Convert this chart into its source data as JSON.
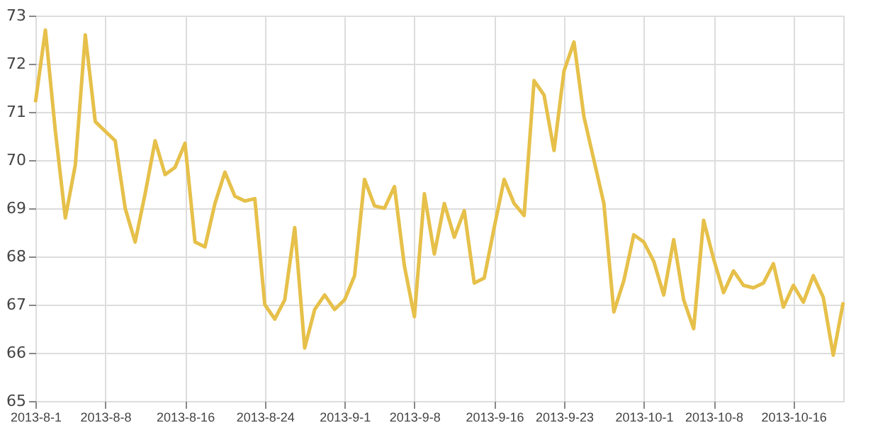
{
  "chart_data": {
    "type": "line",
    "x": [
      "2013-08-01",
      "2013-08-02",
      "2013-08-03",
      "2013-08-04",
      "2013-08-05",
      "2013-08-06",
      "2013-08-07",
      "2013-08-08",
      "2013-08-09",
      "2013-08-10",
      "2013-08-11",
      "2013-08-12",
      "2013-08-13",
      "2013-08-14",
      "2013-08-15",
      "2013-08-16",
      "2013-08-17",
      "2013-08-18",
      "2013-08-19",
      "2013-08-20",
      "2013-08-21",
      "2013-08-22",
      "2013-08-23",
      "2013-08-24",
      "2013-08-25",
      "2013-08-26",
      "2013-08-27",
      "2013-08-28",
      "2013-08-29",
      "2013-08-30",
      "2013-08-31",
      "2013-09-01",
      "2013-09-02",
      "2013-09-03",
      "2013-09-04",
      "2013-09-05",
      "2013-09-06",
      "2013-09-07",
      "2013-09-08",
      "2013-09-09",
      "2013-09-10",
      "2013-09-11",
      "2013-09-12",
      "2013-09-13",
      "2013-09-14",
      "2013-09-15",
      "2013-09-16",
      "2013-09-17",
      "2013-09-18",
      "2013-09-19",
      "2013-09-20",
      "2013-09-21",
      "2013-09-22",
      "2013-09-23",
      "2013-09-24",
      "2013-09-25",
      "2013-09-26",
      "2013-09-27",
      "2013-09-28",
      "2013-09-29",
      "2013-09-30",
      "2013-10-01",
      "2013-10-02",
      "2013-10-03",
      "2013-10-04",
      "2013-10-05",
      "2013-10-06",
      "2013-10-07",
      "2013-10-08",
      "2013-10-09",
      "2013-10-10",
      "2013-10-11",
      "2013-10-12",
      "2013-10-13",
      "2013-10-14",
      "2013-10-15",
      "2013-10-16",
      "2013-10-17",
      "2013-10-18",
      "2013-10-19",
      "2013-10-20",
      "2013-10-21"
    ],
    "series": [
      {
        "color": "#e6c04a",
        "values": [
          71.2,
          72.7,
          70.6,
          68.8,
          69.9,
          72.6,
          70.8,
          70.6,
          70.4,
          69.0,
          68.3,
          69.3,
          70.4,
          69.7,
          69.85,
          70.35,
          68.3,
          68.2,
          69.1,
          69.75,
          69.25,
          69.15,
          69.2,
          67.0,
          66.7,
          67.1,
          68.6,
          66.1,
          66.9,
          67.2,
          66.9,
          67.1,
          67.6,
          69.6,
          69.05,
          69.0,
          69.45,
          67.8,
          66.75,
          69.3,
          68.05,
          69.1,
          68.4,
          68.95,
          67.45,
          67.55,
          68.6,
          69.6,
          69.1,
          68.85,
          71.65,
          71.35,
          70.2,
          71.85,
          72.45,
          70.9,
          70.0,
          69.1,
          66.85,
          67.5,
          68.45,
          68.3,
          67.9,
          67.2,
          68.35,
          67.1,
          66.5,
          68.75,
          67.95,
          67.25,
          67.7,
          67.4,
          67.35,
          67.45,
          67.85,
          66.95,
          67.4,
          67.05,
          67.6,
          67.15,
          65.95,
          67.05
        ]
      }
    ],
    "xlim": [
      "2013-08-01",
      "2013-10-21"
    ],
    "xticks": [
      {
        "value": "2013-08-01",
        "label": "2013-8-1"
      },
      {
        "value": "2013-08-08",
        "label": "2013-8-8"
      },
      {
        "value": "2013-08-16",
        "label": "2013-8-16"
      },
      {
        "value": "2013-08-24",
        "label": "2013-8-24"
      },
      {
        "value": "2013-09-01",
        "label": "2013-9-1"
      },
      {
        "value": "2013-09-08",
        "label": "2013-9-8"
      },
      {
        "value": "2013-09-16",
        "label": "2013-9-16"
      },
      {
        "value": "2013-09-23",
        "label": "2013-9-23"
      },
      {
        "value": "2013-10-01",
        "label": "2013-10-1"
      },
      {
        "value": "2013-10-08",
        "label": "2013-10-8"
      },
      {
        "value": "2013-10-16",
        "label": "2013-10-16"
      }
    ],
    "ylim": [
      65,
      73
    ],
    "yticks": [
      65,
      66,
      67,
      68,
      69,
      70,
      71,
      72,
      73
    ],
    "grid": true,
    "line_style": "solid",
    "marker": "none"
  }
}
